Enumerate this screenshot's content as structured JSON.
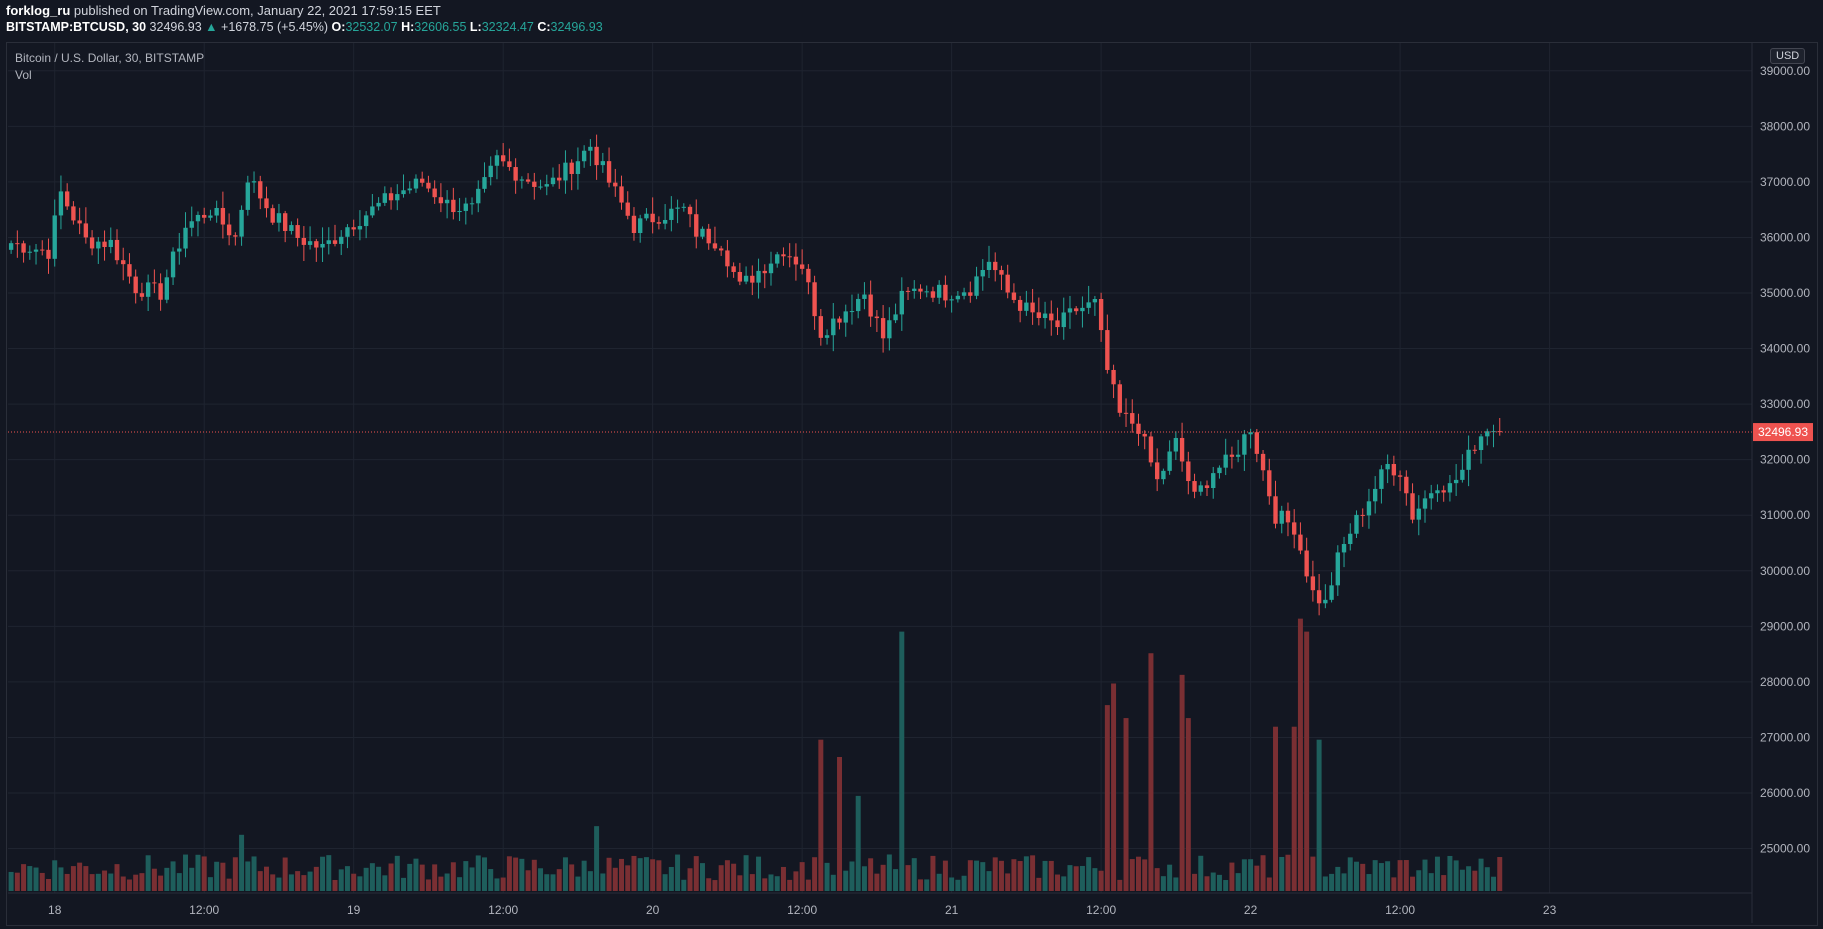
{
  "header": {
    "author": "forklog_ru",
    "published_text": "published on TradingView.com, January 22, 2021 17:59:15 EET",
    "symbol": "BITSTAMP:BTCUSD, 30",
    "last": "32496.93",
    "change_arrow": "▲",
    "change": "+1678.75 (+5.45%)",
    "open_label": "O:",
    "open": "32532.07",
    "high_label": "H:",
    "high": "32606.55",
    "low_label": "L:",
    "low": "32324.47",
    "close_label": "C:",
    "close": "32496.93"
  },
  "legend": {
    "series": "Bitcoin / U.S. Dollar, 30, BITSTAMP",
    "volume": "Vol"
  },
  "price_scale": {
    "currency": "USD"
  },
  "colors": {
    "background": "#131722",
    "grid": "#1f2430",
    "up": "#26a69a",
    "down": "#ef5350",
    "up_volume": "#1e5e5c",
    "down_volume": "#7a2f33",
    "axis_text": "#b2b5be",
    "last_price": "#ef5350"
  },
  "chart_data": {
    "type": "candlestick",
    "ylim": [
      24200,
      39500
    ],
    "y_ticks": [
      "39000.00",
      "38000.00",
      "37000.00",
      "36000.00",
      "35000.00",
      "34000.00",
      "33000.00",
      "32000.00",
      "31000.00",
      "30000.00",
      "29000.00",
      "28000.00",
      "27000.00",
      "26000.00",
      "25000.00"
    ],
    "y_tick_values": [
      39000,
      38000,
      37000,
      36000,
      35000,
      34000,
      33000,
      32000,
      31000,
      30000,
      29000,
      28000,
      27000,
      26000,
      25000
    ],
    "x_ticks": [
      {
        "label": "18",
        "bar": 7
      },
      {
        "label": "12:00",
        "bar": 31
      },
      {
        "label": "19",
        "bar": 55
      },
      {
        "label": "12:00",
        "bar": 79
      },
      {
        "label": "20",
        "bar": 103
      },
      {
        "label": "12:00",
        "bar": 127
      },
      {
        "label": "21",
        "bar": 151
      },
      {
        "label": "12:00",
        "bar": 175
      },
      {
        "label": "22",
        "bar": 199
      },
      {
        "label": "12:00",
        "bar": 223
      },
      {
        "label": "23",
        "bar": 247
      }
    ],
    "last_price_value": 32496.93,
    "last_price_label": "32496.93",
    "key_closes": [
      {
        "bar": 0,
        "close": 35900
      },
      {
        "bar": 6,
        "close": 35750
      },
      {
        "bar": 8,
        "close": 36800
      },
      {
        "bar": 12,
        "close": 35950
      },
      {
        "bar": 16,
        "close": 35900
      },
      {
        "bar": 20,
        "close": 35100
      },
      {
        "bar": 24,
        "close": 35000
      },
      {
        "bar": 28,
        "close": 36200
      },
      {
        "bar": 32,
        "close": 36500
      },
      {
        "bar": 36,
        "close": 36000
      },
      {
        "bar": 38,
        "close": 37100
      },
      {
        "bar": 42,
        "close": 36400
      },
      {
        "bar": 46,
        "close": 36000
      },
      {
        "bar": 50,
        "close": 35800
      },
      {
        "bar": 54,
        "close": 36200
      },
      {
        "bar": 58,
        "close": 36500
      },
      {
        "bar": 62,
        "close": 36800
      },
      {
        "bar": 66,
        "close": 37000
      },
      {
        "bar": 70,
        "close": 36600
      },
      {
        "bar": 74,
        "close": 36500
      },
      {
        "bar": 78,
        "close": 37400
      },
      {
        "bar": 82,
        "close": 37100
      },
      {
        "bar": 86,
        "close": 36900
      },
      {
        "bar": 90,
        "close": 37300
      },
      {
        "bar": 93,
        "close": 37650
      },
      {
        "bar": 96,
        "close": 37000
      },
      {
        "bar": 100,
        "close": 36200
      },
      {
        "bar": 104,
        "close": 36400
      },
      {
        "bar": 108,
        "close": 36500
      },
      {
        "bar": 110,
        "close": 36100
      },
      {
        "bar": 114,
        "close": 35900
      },
      {
        "bar": 117,
        "close": 35100
      },
      {
        "bar": 120,
        "close": 35400
      },
      {
        "bar": 124,
        "close": 35800
      },
      {
        "bar": 127,
        "close": 35500
      },
      {
        "bar": 130,
        "close": 34300
      },
      {
        "bar": 134,
        "close": 34700
      },
      {
        "bar": 137,
        "close": 35000
      },
      {
        "bar": 140,
        "close": 34200
      },
      {
        "bar": 143,
        "close": 34900
      },
      {
        "bar": 146,
        "close": 35100
      },
      {
        "bar": 150,
        "close": 35000
      },
      {
        "bar": 154,
        "close": 35100
      },
      {
        "bar": 157,
        "close": 35600
      },
      {
        "bar": 160,
        "close": 35000
      },
      {
        "bar": 164,
        "close": 34600
      },
      {
        "bar": 168,
        "close": 34400
      },
      {
        "bar": 171,
        "close": 34700
      },
      {
        "bar": 174,
        "close": 34800
      },
      {
        "bar": 176,
        "close": 33600
      },
      {
        "bar": 178,
        "close": 32800
      },
      {
        "bar": 181,
        "close": 32600
      },
      {
        "bar": 184,
        "close": 31600
      },
      {
        "bar": 187,
        "close": 32300
      },
      {
        "bar": 190,
        "close": 31300
      },
      {
        "bar": 193,
        "close": 31800
      },
      {
        "bar": 196,
        "close": 32000
      },
      {
        "bar": 199,
        "close": 32600
      },
      {
        "bar": 201,
        "close": 31800
      },
      {
        "bar": 203,
        "close": 31000
      },
      {
        "bar": 206,
        "close": 30800
      },
      {
        "bar": 209,
        "close": 29600
      },
      {
        "bar": 211,
        "close": 29400
      },
      {
        "bar": 213,
        "close": 30200
      },
      {
        "bar": 215,
        "close": 30700
      },
      {
        "bar": 217,
        "close": 31100
      },
      {
        "bar": 219,
        "close": 31500
      },
      {
        "bar": 221,
        "close": 31900
      },
      {
        "bar": 223,
        "close": 31800
      },
      {
        "bar": 225,
        "close": 31000
      },
      {
        "bar": 227,
        "close": 31300
      },
      {
        "bar": 229,
        "close": 31600
      },
      {
        "bar": 231,
        "close": 31500
      },
      {
        "bar": 233,
        "close": 31800
      },
      {
        "bar": 235,
        "close": 32300
      },
      {
        "bar": 237,
        "close": 32600
      },
      {
        "bar": 239,
        "close": 32497
      }
    ],
    "volume_spikes": [
      {
        "bar": 37,
        "vol": 13000,
        "up": true
      },
      {
        "bar": 94,
        "vol": 15000,
        "up": true
      },
      {
        "bar": 130,
        "vol": 35000,
        "up": false
      },
      {
        "bar": 133,
        "vol": 31000,
        "up": false
      },
      {
        "bar": 136,
        "vol": 22000,
        "up": true
      },
      {
        "bar": 143,
        "vol": 60000,
        "up": true
      },
      {
        "bar": 176,
        "vol": 43000,
        "up": false
      },
      {
        "bar": 177,
        "vol": 48000,
        "up": false
      },
      {
        "bar": 179,
        "vol": 40000,
        "up": false
      },
      {
        "bar": 183,
        "vol": 55000,
        "up": false
      },
      {
        "bar": 188,
        "vol": 50000,
        "up": false
      },
      {
        "bar": 189,
        "vol": 40000,
        "up": false
      },
      {
        "bar": 203,
        "vol": 38000,
        "up": false
      },
      {
        "bar": 206,
        "vol": 38000,
        "up": false
      },
      {
        "bar": 207,
        "vol": 63000,
        "up": false
      },
      {
        "bar": 208,
        "vol": 60000,
        "up": false
      },
      {
        "bar": 210,
        "vol": 35000,
        "up": true
      }
    ]
  }
}
